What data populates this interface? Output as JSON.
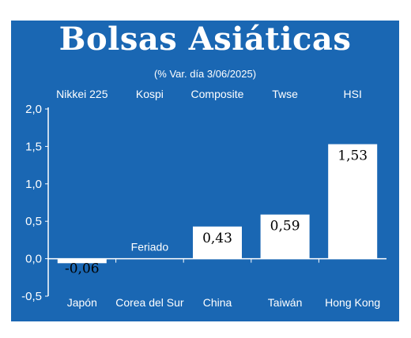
{
  "title": "Bolsas Asiáticas",
  "subtitle": "(% Var. día 3/06/2025)",
  "colors": {
    "background": "#1a67b3",
    "bar": "#ffffff",
    "text": "#ffffff",
    "value_text": "#000000"
  },
  "chart_data": {
    "type": "bar",
    "title": "Bolsas Asiáticas",
    "subtitle": "(% Var. día 3/06/2025)",
    "categories": [
      "Japón",
      "Corea del Sur",
      "China",
      "Taiwán",
      "Hong Kong"
    ],
    "index_names": [
      "Nikkei 225",
      "Kospi",
      "Composite",
      "Twse",
      "HSI"
    ],
    "values": [
      -0.06,
      null,
      0.43,
      0.59,
      1.53
    ],
    "value_labels": [
      "-0,06",
      "",
      "0,43",
      "0,59",
      "1,53"
    ],
    "notes": [
      "",
      "Feriado",
      "",
      "",
      ""
    ],
    "ylim": [
      -0.5,
      2.0
    ],
    "yticks": [
      2.0,
      1.5,
      1.0,
      0.5,
      0.0,
      -0.5
    ],
    "ytick_labels": [
      "2,0",
      "1,5",
      "1,0",
      "0,5",
      "0,0",
      "-0,5"
    ],
    "xlabel": "",
    "ylabel": "",
    "grid": false,
    "legend": "none"
  }
}
